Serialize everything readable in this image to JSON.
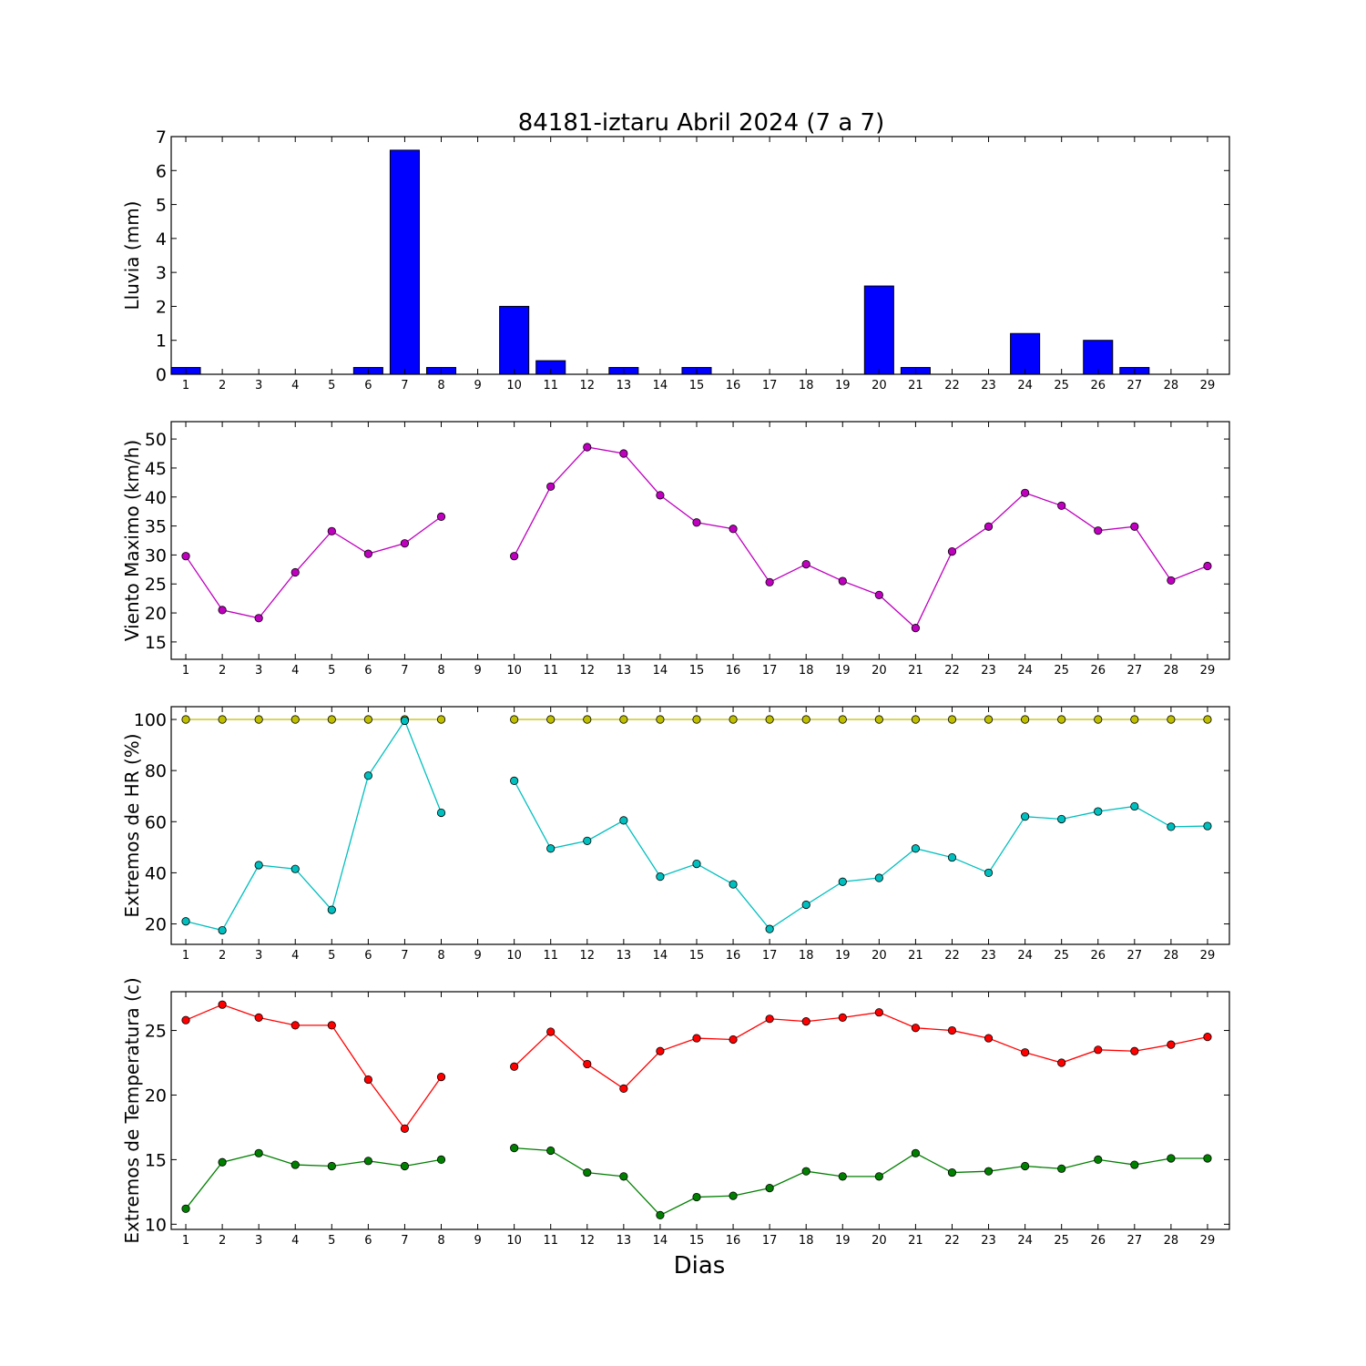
{
  "figure": {
    "title": "84181-iztaru Abril 2024  (7 a 7)",
    "xlabel": "Dias"
  },
  "chart_data": [
    {
      "type": "bar",
      "ylabel": "Lluvia (mm)",
      "ylim": [
        0,
        7
      ],
      "yticks": [
        0,
        1,
        2,
        3,
        4,
        5,
        6,
        7
      ],
      "categories": [
        1,
        2,
        3,
        4,
        5,
        6,
        7,
        8,
        9,
        10,
        11,
        12,
        13,
        14,
        15,
        16,
        17,
        18,
        19,
        20,
        21,
        22,
        23,
        24,
        25,
        26,
        27,
        28,
        29
      ],
      "values": [
        0.2,
        0,
        0,
        0,
        0,
        0.2,
        6.6,
        0.2,
        null,
        2.0,
        0.4,
        0,
        0.2,
        0,
        0.2,
        0,
        0,
        0,
        0,
        2.6,
        0.2,
        0,
        0,
        1.2,
        0,
        1.0,
        0.2,
        0,
        0
      ],
      "color": "#0000ff"
    },
    {
      "type": "line",
      "ylabel": "Viento Maximo (km/h)",
      "ylim": [
        12,
        53
      ],
      "yticks": [
        15,
        20,
        25,
        30,
        35,
        40,
        45,
        50
      ],
      "x": [
        1,
        2,
        3,
        4,
        5,
        6,
        7,
        8,
        9,
        10,
        11,
        12,
        13,
        14,
        15,
        16,
        17,
        18,
        19,
        20,
        21,
        22,
        23,
        24,
        25,
        26,
        27,
        28,
        29
      ],
      "series": [
        {
          "color": "#bf00bf",
          "values": [
            29.8,
            20.5,
            19.1,
            27.0,
            34.1,
            30.2,
            32.0,
            36.6,
            null,
            29.8,
            41.8,
            48.6,
            47.5,
            40.3,
            35.6,
            34.5,
            25.3,
            28.4,
            25.5,
            23.1,
            17.4,
            30.6,
            34.9,
            40.7,
            38.5,
            34.2,
            34.9,
            25.6,
            28.1
          ]
        }
      ]
    },
    {
      "type": "line",
      "ylabel": "Extremos de HR (%)",
      "ylim": [
        12,
        105
      ],
      "yticks": [
        20,
        40,
        60,
        80,
        100
      ],
      "x": [
        1,
        2,
        3,
        4,
        5,
        6,
        7,
        8,
        9,
        10,
        11,
        12,
        13,
        14,
        15,
        16,
        17,
        18,
        19,
        20,
        21,
        22,
        23,
        24,
        25,
        26,
        27,
        28,
        29
      ],
      "series": [
        {
          "color": "#bfbf00",
          "values": [
            100,
            100,
            100,
            100,
            100,
            100,
            100,
            100,
            null,
            100,
            100,
            100,
            100,
            100,
            100,
            100,
            100,
            100,
            100,
            100,
            100,
            100,
            100,
            100,
            100,
            100,
            100,
            100,
            100
          ]
        },
        {
          "color": "#00bfbf",
          "values": [
            21,
            17.5,
            43,
            41.5,
            25.5,
            78,
            99.5,
            63.5,
            null,
            76,
            49.5,
            52.5,
            60.5,
            38.5,
            43.5,
            35.5,
            18,
            27.5,
            36.5,
            38,
            49.5,
            46,
            40,
            62,
            61,
            64,
            66,
            58,
            58.3
          ]
        }
      ]
    },
    {
      "type": "line",
      "ylabel": "Extremos de Temperatura (c)",
      "ylim": [
        9.6,
        28
      ],
      "yticks": [
        10,
        15,
        20,
        25
      ],
      "x": [
        1,
        2,
        3,
        4,
        5,
        6,
        7,
        8,
        9,
        10,
        11,
        12,
        13,
        14,
        15,
        16,
        17,
        18,
        19,
        20,
        21,
        22,
        23,
        24,
        25,
        26,
        27,
        28,
        29
      ],
      "series": [
        {
          "color": "#ff0000",
          "values": [
            25.8,
            27.0,
            26.0,
            25.4,
            25.4,
            21.2,
            17.4,
            21.4,
            null,
            22.2,
            24.9,
            22.4,
            20.5,
            23.4,
            24.4,
            24.3,
            25.9,
            25.7,
            26.0,
            26.4,
            25.2,
            25.0,
            24.4,
            23.3,
            22.5,
            23.5,
            23.4,
            23.9,
            24.5
          ]
        },
        {
          "color": "#007f00",
          "values": [
            11.2,
            14.8,
            15.5,
            14.6,
            14.5,
            14.9,
            14.5,
            15.0,
            null,
            15.9,
            15.7,
            14.0,
            13.7,
            10.7,
            12.1,
            12.2,
            12.8,
            14.1,
            13.7,
            13.7,
            15.5,
            14.0,
            14.1,
            14.5,
            14.3,
            15.0,
            14.6,
            15.1,
            15.1
          ]
        }
      ]
    }
  ]
}
